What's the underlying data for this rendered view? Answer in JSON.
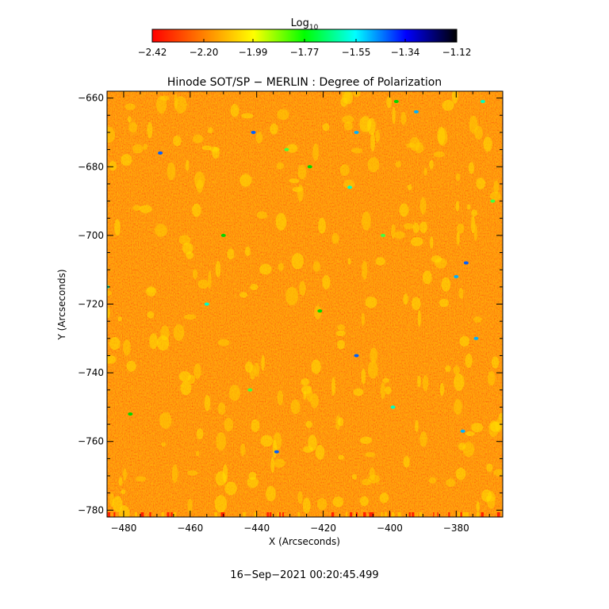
{
  "chart_data": {
    "type": "heatmap",
    "title": "Hinode SOT/SP − MERLIN : Degree of Polarization",
    "xlabel": "X (Arcseconds)",
    "ylabel": "Y (Arcseconds)",
    "xlim": [
      -485,
      -366
    ],
    "ylim": [
      -782,
      -658
    ],
    "x_ticks": [
      -480,
      -460,
      -440,
      -420,
      -400,
      -380
    ],
    "x_tick_labels": [
      "−480",
      "−460",
      "−440",
      "−420",
      "−400",
      "−380"
    ],
    "y_ticks": [
      -660,
      -680,
      -700,
      -720,
      -740,
      -760,
      -780
    ],
    "y_tick_labels": [
      "−660",
      "−680",
      "−700",
      "−720",
      "−740",
      "−760",
      "−780"
    ],
    "colorbar": {
      "label_main": "Log",
      "label_sub": "10",
      "ticks": [
        -2.42,
        -2.2,
        -1.99,
        -1.77,
        -1.55,
        -1.34,
        -1.12
      ],
      "tick_labels": [
        "−2.42",
        "−2.20",
        "−1.99",
        "−1.77",
        "−1.55",
        "−1.34",
        "−1.12"
      ],
      "range": [
        -2.42,
        -1.12
      ],
      "colors": [
        "#ff0000",
        "#ff7f00",
        "#ffff00",
        "#00ff00",
        "#00ffff",
        "#0000ff",
        "#000000"
      ]
    },
    "grid": false
  },
  "footer": {
    "timestamp": "16−Sep−2021 00:20:45.499"
  }
}
